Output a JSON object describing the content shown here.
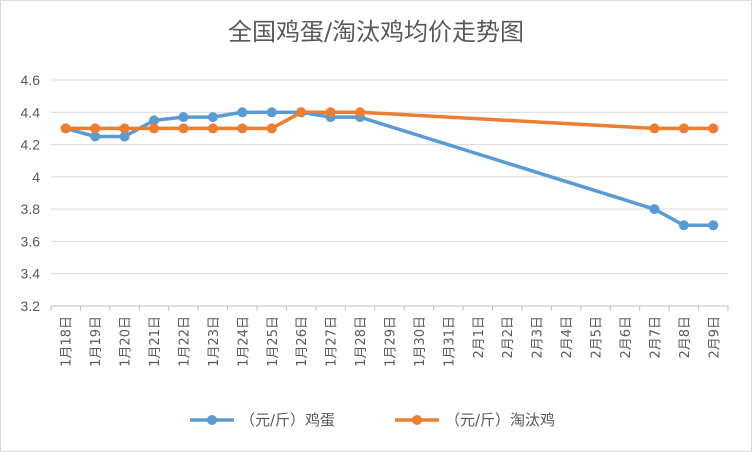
{
  "chart_data": {
    "type": "line",
    "title": "全国鸡蛋/淘汰鸡均价走势图",
    "categories": [
      "1月18日",
      "1月19日",
      "1月20日",
      "1月21日",
      "1月22日",
      "1月23日",
      "1月24日",
      "1月25日",
      "1月26日",
      "1月27日",
      "1月28日",
      "1月29日",
      "1月30日",
      "1月31日",
      "2月1日",
      "2月2日",
      "2月3日",
      "2月4日",
      "2月5日",
      "2月6日",
      "2月7日",
      "2月8日",
      "2月9日"
    ],
    "ylim": [
      3.2,
      4.6
    ],
    "yticks": [
      "3.2",
      "3.4",
      "3.6",
      "3.8",
      "4",
      "4.2",
      "4.4",
      "4.6"
    ],
    "grid": true,
    "legend_position": "bottom",
    "series": [
      {
        "name": "（元/斤）鸡蛋",
        "color": "#5b9bd5",
        "values": [
          4.3,
          4.25,
          4.25,
          4.35,
          4.37,
          4.37,
          4.4,
          4.4,
          4.4,
          4.37,
          4.37,
          null,
          null,
          null,
          null,
          null,
          null,
          null,
          null,
          null,
          3.8,
          3.7,
          3.7
        ]
      },
      {
        "name": "（元/斤）淘汰鸡",
        "color": "#ed7d31",
        "values": [
          4.3,
          4.3,
          4.3,
          4.3,
          4.3,
          4.3,
          4.3,
          4.3,
          4.4,
          4.4,
          4.4,
          null,
          null,
          null,
          null,
          null,
          null,
          null,
          null,
          null,
          4.3,
          4.3,
          4.3
        ]
      }
    ]
  }
}
